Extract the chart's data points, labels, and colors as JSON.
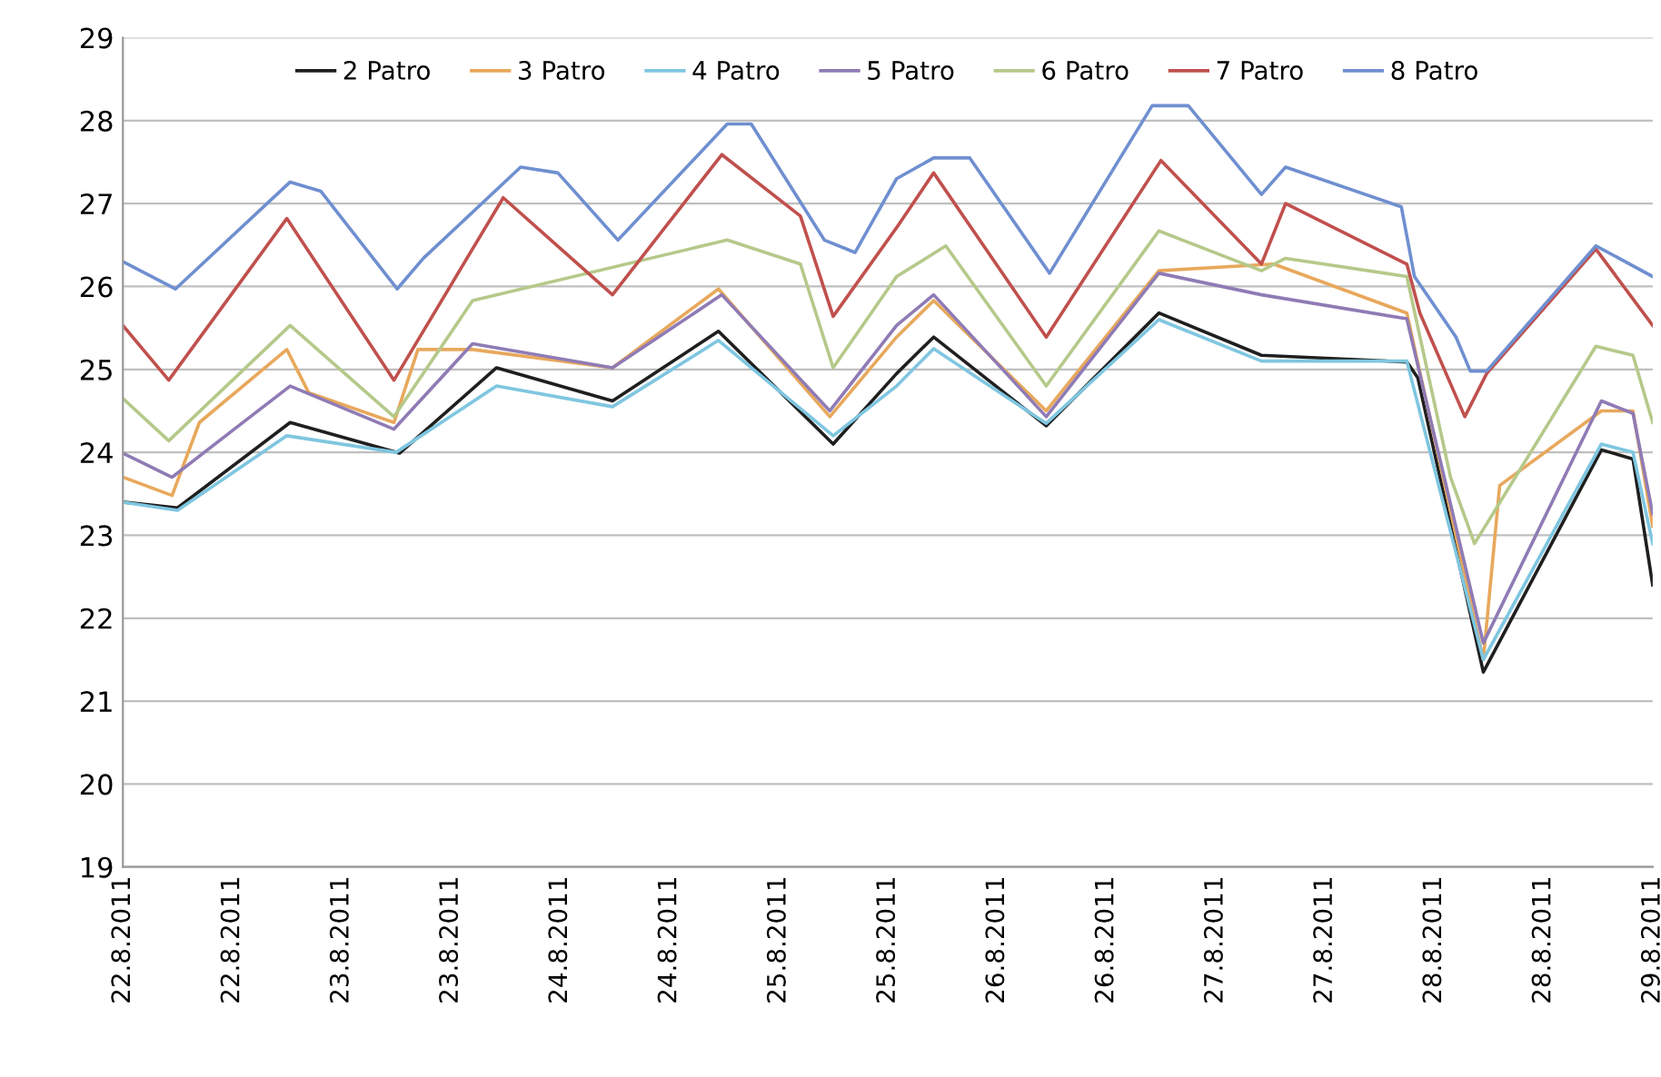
{
  "chart_data": {
    "type": "line",
    "xlim": [
      "2011-08-22T00:00",
      "2011-08-29T00:00"
    ],
    "ylim": [
      19,
      29
    ],
    "yticks": [
      19,
      20,
      21,
      22,
      23,
      24,
      25,
      26,
      27,
      28,
      29
    ],
    "xticks": [
      {
        "value": "2011-08-22T00:00",
        "label": "22.8.2011"
      },
      {
        "value": "2011-08-22T12:00",
        "label": "22.8.2011"
      },
      {
        "value": "2011-08-23T00:00",
        "label": "23.8.2011"
      },
      {
        "value": "2011-08-23T12:00",
        "label": "23.8.2011"
      },
      {
        "value": "2011-08-24T00:00",
        "label": "24.8.2011"
      },
      {
        "value": "2011-08-24T12:00",
        "label": "24.8.2011"
      },
      {
        "value": "2011-08-25T00:00",
        "label": "25.8.2011"
      },
      {
        "value": "2011-08-25T12:00",
        "label": "25.8.2011"
      },
      {
        "value": "2011-08-26T00:00",
        "label": "26.8.2011"
      },
      {
        "value": "2011-08-26T12:00",
        "label": "26.8.2011"
      },
      {
        "value": "2011-08-27T00:00",
        "label": "27.8.2011"
      },
      {
        "value": "2011-08-27T12:00",
        "label": "27.8.2011"
      },
      {
        "value": "2011-08-28T00:00",
        "label": "28.8.2011"
      },
      {
        "value": "2011-08-28T12:00",
        "label": "28.8.2011"
      },
      {
        "value": "2011-08-29T00:00",
        "label": "29.8.2011"
      }
    ],
    "grid": "y",
    "legend": "top",
    "series": [
      {
        "name": "2 Patro",
        "color": "#1f1f1f",
        "x": [
          "2011-08-22T00:00",
          "2011-08-22T06:00",
          "2011-08-22T18:22",
          "2011-08-23T06:22",
          "2011-08-23T17:02",
          "2011-08-24T05:46",
          "2011-08-24T17:24",
          "2011-08-25T06:00",
          "2011-08-25T12:58",
          "2011-08-25T17:02",
          "2011-08-26T05:24",
          "2011-08-26T17:46",
          "2011-08-27T05:02",
          "2011-08-27T21:00",
          "2011-08-27T22:12",
          "2011-08-28T05:24",
          "2011-08-28T18:22",
          "2011-08-28T21:50",
          "2011-08-29T00:00"
        ],
        "values": [
          23.4,
          23.33,
          24.36,
          23.99,
          25.02,
          24.62,
          25.46,
          24.1,
          24.95,
          25.39,
          24.32,
          25.68,
          25.17,
          25.09,
          24.9,
          21.35,
          24.03,
          23.92,
          22.4
        ]
      },
      {
        "name": "3 Patro",
        "color": "#e8a85c",
        "x": [
          "2011-08-22T00:00",
          "2011-08-22T05:24",
          "2011-08-22T08:24",
          "2011-08-22T18:00",
          "2011-08-22T20:24",
          "2011-08-23T05:46",
          "2011-08-23T08:24",
          "2011-08-23T14:24",
          "2011-08-24T05:46",
          "2011-08-24T17:24",
          "2011-08-25T05:38",
          "2011-08-25T12:58",
          "2011-08-25T17:02",
          "2011-08-26T05:24",
          "2011-08-26T17:46",
          "2011-08-27T06:22",
          "2011-08-27T21:00",
          "2011-08-28T05:24",
          "2011-08-28T07:12",
          "2011-08-28T18:22",
          "2011-08-28T21:50",
          "2011-08-29T00:00"
        ],
        "values": [
          23.7,
          23.48,
          24.36,
          25.24,
          24.72,
          24.36,
          25.24,
          25.24,
          25.02,
          25.97,
          24.43,
          25.39,
          25.83,
          24.5,
          26.19,
          26.27,
          25.68,
          21.5,
          23.6,
          24.5,
          24.5,
          23.11
        ]
      },
      {
        "name": "4 Patro",
        "color": "#7fc6e0",
        "x": [
          "2011-08-22T00:00",
          "2011-08-22T06:00",
          "2011-08-22T18:00",
          "2011-08-23T06:00",
          "2011-08-23T17:02",
          "2011-08-24T05:46",
          "2011-08-24T17:24",
          "2011-08-25T06:00",
          "2011-08-25T12:58",
          "2011-08-25T17:02",
          "2011-08-26T05:24",
          "2011-08-26T17:46",
          "2011-08-27T05:02",
          "2011-08-27T21:00",
          "2011-08-28T05:24",
          "2011-08-28T18:22",
          "2011-08-28T21:50",
          "2011-08-29T00:00"
        ],
        "values": [
          23.4,
          23.3,
          24.2,
          24.0,
          24.8,
          24.55,
          25.35,
          24.2,
          24.8,
          25.25,
          24.35,
          25.6,
          25.1,
          25.1,
          21.5,
          24.1,
          24.0,
          22.9
        ]
      },
      {
        "name": "5 Patro",
        "color": "#8f7bb5",
        "x": [
          "2011-08-22T00:00",
          "2011-08-22T05:24",
          "2011-08-22T18:22",
          "2011-08-23T05:46",
          "2011-08-23T14:24",
          "2011-08-24T05:46",
          "2011-08-24T17:46",
          "2011-08-25T05:38",
          "2011-08-25T12:58",
          "2011-08-25T17:02",
          "2011-08-26T05:24",
          "2011-08-26T17:46",
          "2011-08-27T05:02",
          "2011-08-27T21:00",
          "2011-08-28T05:24",
          "2011-08-28T18:22",
          "2011-08-28T21:50",
          "2011-08-29T00:00"
        ],
        "values": [
          23.99,
          23.7,
          24.8,
          24.28,
          25.31,
          25.02,
          25.9,
          24.5,
          25.53,
          25.9,
          24.43,
          26.16,
          25.9,
          25.61,
          21.7,
          24.62,
          24.47,
          23.26
        ]
      },
      {
        "name": "6 Patro",
        "color": "#b5c98a",
        "x": [
          "2011-08-22T00:00",
          "2011-08-22T05:02",
          "2011-08-22T18:22",
          "2011-08-23T05:46",
          "2011-08-23T14:24",
          "2011-08-24T18:22",
          "2011-08-25T02:24",
          "2011-08-25T06:00",
          "2011-08-25T12:58",
          "2011-08-25T18:22",
          "2011-08-26T05:24",
          "2011-08-26T17:46",
          "2011-08-27T05:02",
          "2011-08-27T07:41",
          "2011-08-27T21:00",
          "2011-08-28T01:48",
          "2011-08-28T04:26",
          "2011-08-28T17:46",
          "2011-08-28T21:50",
          "2011-08-29T00:00"
        ],
        "values": [
          24.65,
          24.14,
          25.53,
          24.43,
          25.83,
          26.56,
          26.27,
          25.02,
          26.12,
          26.49,
          24.8,
          26.67,
          26.19,
          26.34,
          26.12,
          23.7,
          22.9,
          25.28,
          25.17,
          24.36
        ]
      },
      {
        "name": "7 Patro",
        "color": "#c0504d",
        "x": [
          "2011-08-22T00:00",
          "2011-08-22T05:02",
          "2011-08-22T18:00",
          "2011-08-23T05:46",
          "2011-08-23T17:46",
          "2011-08-24T05:46",
          "2011-08-24T17:46",
          "2011-08-25T02:24",
          "2011-08-25T06:00",
          "2011-08-25T12:58",
          "2011-08-25T17:02",
          "2011-08-26T05:24",
          "2011-08-26T18:00",
          "2011-08-27T05:02",
          "2011-08-27T07:41",
          "2011-08-27T21:00",
          "2011-08-27T22:26",
          "2011-08-28T03:22",
          "2011-08-28T05:46",
          "2011-08-28T17:46",
          "2011-08-29T00:00"
        ],
        "values": [
          25.53,
          24.87,
          26.82,
          24.87,
          27.07,
          25.9,
          27.59,
          26.85,
          25.64,
          26.71,
          27.37,
          25.39,
          27.52,
          26.27,
          27.0,
          26.27,
          25.68,
          24.43,
          24.95,
          26.45,
          25.53
        ]
      },
      {
        "name": "8 Patro",
        "color": "#6f8fd0",
        "x": [
          "2011-08-22T00:00",
          "2011-08-22T05:46",
          "2011-08-22T18:22",
          "2011-08-22T21:43",
          "2011-08-23T06:07",
          "2011-08-23T09:00",
          "2011-08-23T19:41",
          "2011-08-23T23:46",
          "2011-08-24T06:22",
          "2011-08-24T18:22",
          "2011-08-24T21:00",
          "2011-08-25T05:02",
          "2011-08-25T08:24",
          "2011-08-25T12:58",
          "2011-08-25T17:02",
          "2011-08-25T21:00",
          "2011-08-26T05:46",
          "2011-08-26T17:02",
          "2011-08-26T21:00",
          "2011-08-27T05:02",
          "2011-08-27T07:41",
          "2011-08-27T20:24",
          "2011-08-27T21:50",
          "2011-08-28T02:24",
          "2011-08-28T03:58",
          "2011-08-28T05:46",
          "2011-08-28T17:46",
          "2011-08-29T00:00"
        ],
        "values": [
          26.3,
          25.97,
          27.26,
          27.15,
          25.97,
          26.34,
          27.44,
          27.37,
          26.56,
          27.96,
          27.96,
          26.56,
          26.41,
          27.3,
          27.55,
          27.55,
          26.16,
          28.18,
          28.18,
          27.11,
          27.44,
          26.96,
          26.12,
          25.39,
          24.98,
          24.98,
          26.49,
          26.12
        ]
      }
    ]
  }
}
